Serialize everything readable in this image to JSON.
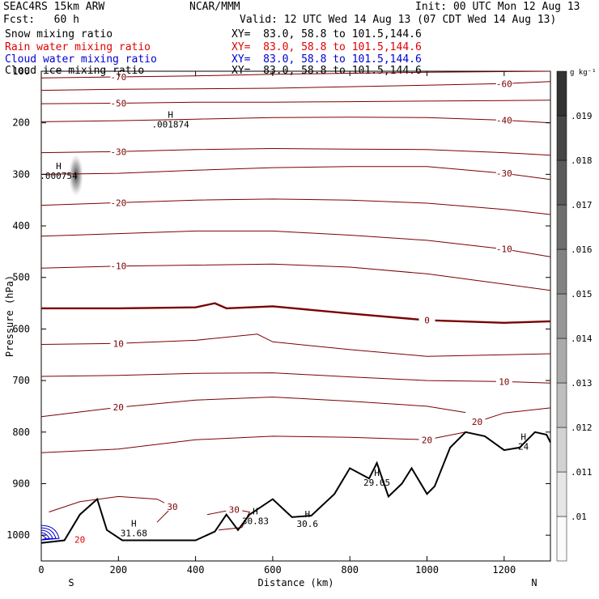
{
  "header": {
    "model": "SEAC4RS 15km ARW",
    "org": "NCAR/MMM",
    "init": "Init: 00 UTC Mon 12 Aug 13",
    "fcst": "Fcst:   60 h",
    "valid": "Valid: 12 UTC Wed 14 Aug 13 (07 CDT Wed 14 Aug 13)"
  },
  "fields": [
    {
      "name": "Snow mixing ratio",
      "xy": "XY=  83.0, 58.8 to 101.5,144.6",
      "color": "#000000"
    },
    {
      "name": "Rain water mixing ratio",
      "xy": "XY=  83.0, 58.8 to 101.5,144.6",
      "color": "#e00000"
    },
    {
      "name": "Cloud water mixing ratio",
      "xy": "XY=  83.0, 58.8 to 101.5,144.6",
      "color": "#0000d0"
    },
    {
      "name": "Cloud ice mixing ratio",
      "xy": "XY=  83.0, 58.8 to 101.5,144.6",
      "color": "#000000"
    }
  ],
  "colors": {
    "temperature": "#7a0000",
    "terrain": "#000000",
    "cloud_water": "#0000d0",
    "rain": "#e00000"
  },
  "chart_data": {
    "type": "cross-section",
    "xlabel": "Distance (km)",
    "ylabel": "Pressure (hPa)",
    "xlim": [
      0,
      1320
    ],
    "ylim": [
      1050,
      100
    ],
    "x_ticks": [
      0,
      200,
      400,
      600,
      800,
      1000,
      1200
    ],
    "y_ticks": [
      200,
      300,
      400,
      500,
      600,
      700,
      800,
      900,
      1000
    ],
    "y_tick_labels_top": [
      "100"
    ],
    "endpoints": {
      "left": "S",
      "right": "N"
    },
    "colorbar": {
      "unit": "g kg⁻¹",
      "values": [
        ".01",
        ".011",
        ".012",
        ".013",
        ".014",
        ".015",
        ".016",
        ".017",
        ".018",
        ".019"
      ]
    },
    "isotherms": [
      {
        "label": "-70",
        "points": [
          [
            0,
            113
          ],
          [
            200,
            111
          ],
          [
            400,
            109
          ],
          [
            600,
            106
          ],
          [
            800,
            104
          ],
          [
            1000,
            102
          ],
          [
            1320,
            100
          ]
        ]
      },
      {
        "label": "-60",
        "points": [
          [
            0,
            137
          ],
          [
            200,
            135
          ],
          [
            400,
            134
          ],
          [
            600,
            133
          ],
          [
            800,
            130
          ],
          [
            1000,
            127
          ],
          [
            1200,
            124
          ],
          [
            1320,
            120
          ]
        ]
      },
      {
        "label": "-50",
        "points": [
          [
            0,
            163
          ],
          [
            200,
            162
          ],
          [
            400,
            160
          ],
          [
            600,
            160
          ],
          [
            800,
            159
          ],
          [
            1000,
            158
          ],
          [
            1200,
            157
          ],
          [
            1320,
            156
          ]
        ]
      },
      {
        "label": "-40",
        "points": [
          [
            0,
            198
          ],
          [
            200,
            196
          ],
          [
            400,
            193
          ],
          [
            600,
            190
          ],
          [
            800,
            189
          ],
          [
            1000,
            190
          ],
          [
            1200,
            195
          ],
          [
            1320,
            200
          ]
        ]
      },
      {
        "label": "-30",
        "points": [
          [
            0,
            258
          ],
          [
            200,
            256
          ],
          [
            400,
            252
          ],
          [
            600,
            250
          ],
          [
            800,
            251
          ],
          [
            1000,
            252
          ],
          [
            1200,
            258
          ],
          [
            1320,
            263
          ]
        ]
      },
      {
        "label": "-30",
        "points": [
          [
            0,
            300
          ],
          [
            200,
            298
          ],
          [
            400,
            292
          ],
          [
            600,
            287
          ],
          [
            800,
            285
          ],
          [
            1000,
            285
          ],
          [
            1200,
            298
          ],
          [
            1320,
            310
          ]
        ]
      },
      {
        "label": "-20",
        "points": [
          [
            0,
            360
          ],
          [
            200,
            355
          ],
          [
            400,
            350
          ],
          [
            600,
            348
          ],
          [
            800,
            350
          ],
          [
            1000,
            356
          ],
          [
            1200,
            368
          ],
          [
            1320,
            378
          ]
        ]
      },
      {
        "label": "-10",
        "points": [
          [
            0,
            420
          ],
          [
            200,
            415
          ],
          [
            400,
            410
          ],
          [
            600,
            410
          ],
          [
            800,
            418
          ],
          [
            1000,
            428
          ],
          [
            1200,
            445
          ],
          [
            1320,
            460
          ]
        ]
      },
      {
        "label": "-10",
        "points": [
          [
            0,
            482
          ],
          [
            200,
            478
          ],
          [
            400,
            476
          ],
          [
            600,
            474
          ],
          [
            800,
            480
          ],
          [
            1000,
            493
          ],
          [
            1200,
            513
          ],
          [
            1320,
            525
          ]
        ]
      },
      {
        "label": "0",
        "bold": true,
        "points": [
          [
            0,
            560
          ],
          [
            200,
            560
          ],
          [
            400,
            558
          ],
          [
            450,
            550
          ],
          [
            480,
            560
          ],
          [
            600,
            556
          ],
          [
            800,
            570
          ],
          [
            1000,
            583
          ],
          [
            1200,
            588
          ],
          [
            1320,
            585
          ]
        ]
      },
      {
        "label": "10",
        "points": [
          [
            0,
            630
          ],
          [
            200,
            628
          ],
          [
            400,
            622
          ],
          [
            560,
            610
          ],
          [
            600,
            625
          ],
          [
            800,
            640
          ],
          [
            1000,
            653
          ],
          [
            1200,
            650
          ],
          [
            1320,
            648
          ]
        ]
      },
      {
        "label": "10",
        "points": [
          [
            0,
            692
          ],
          [
            200,
            690
          ],
          [
            400,
            686
          ],
          [
            600,
            685
          ],
          [
            800,
            693
          ],
          [
            1000,
            700
          ],
          [
            1200,
            702
          ],
          [
            1320,
            705
          ]
        ]
      },
      {
        "label": "20",
        "points": [
          [
            0,
            770
          ],
          [
            200,
            752
          ],
          [
            400,
            738
          ],
          [
            600,
            732
          ],
          [
            800,
            740
          ],
          [
            1000,
            750
          ],
          [
            1100,
            762
          ]
        ]
      },
      {
        "label": "20",
        "points": [
          [
            0,
            840
          ],
          [
            200,
            833
          ],
          [
            400,
            815
          ],
          [
            600,
            808
          ],
          [
            800,
            810
          ],
          [
            1000,
            815
          ],
          [
            1100,
            800
          ]
        ]
      },
      {
        "label": "20",
        "points": [
          [
            1130,
            780
          ],
          [
            1200,
            763
          ],
          [
            1320,
            753
          ]
        ]
      },
      {
        "label": "30",
        "points": [
          [
            20,
            955
          ],
          [
            100,
            935
          ],
          [
            200,
            925
          ],
          [
            300,
            930
          ],
          [
            340,
            945
          ],
          [
            300,
            975
          ]
        ]
      },
      {
        "label": "30",
        "points": [
          [
            430,
            960
          ],
          [
            500,
            950
          ],
          [
            540,
            955
          ],
          [
            520,
            985
          ],
          [
            460,
            990
          ]
        ]
      }
    ],
    "terrain": [
      [
        0,
        1015
      ],
      [
        60,
        1010
      ],
      [
        100,
        960
      ],
      [
        145,
        930
      ],
      [
        170,
        990
      ],
      [
        210,
        1010
      ],
      [
        300,
        1010
      ],
      [
        400,
        1010
      ],
      [
        450,
        993
      ],
      [
        480,
        960
      ],
      [
        510,
        990
      ],
      [
        540,
        960
      ],
      [
        600,
        930
      ],
      [
        650,
        965
      ],
      [
        700,
        962
      ],
      [
        760,
        920
      ],
      [
        800,
        870
      ],
      [
        850,
        890
      ],
      [
        870,
        860
      ],
      [
        900,
        925
      ],
      [
        935,
        900
      ],
      [
        960,
        870
      ],
      [
        1000,
        920
      ],
      [
        1020,
        905
      ],
      [
        1060,
        830
      ],
      [
        1100,
        800
      ],
      [
        1150,
        808
      ],
      [
        1200,
        835
      ],
      [
        1240,
        830
      ],
      [
        1280,
        800
      ],
      [
        1310,
        805
      ],
      [
        1320,
        820
      ]
    ],
    "maxima": [
      {
        "label": "H",
        "value": ".001874",
        "x": 335,
        "p": 190
      },
      {
        "label": "H",
        "value": ".000754",
        "x": 45,
        "p": 290
      },
      {
        "label": "H",
        "value": "31.68",
        "x": 240,
        "p": 983
      },
      {
        "label": "H",
        "value": "30.83",
        "x": 555,
        "p": 960
      },
      {
        "label": "H",
        "value": "30.6",
        "x": 690,
        "p": 965
      },
      {
        "label": "H",
        "value": "29.05",
        "x": 870,
        "p": 885
      },
      {
        "label": "H",
        "value": "24",
        "x": 1250,
        "p": 815
      }
    ]
  }
}
